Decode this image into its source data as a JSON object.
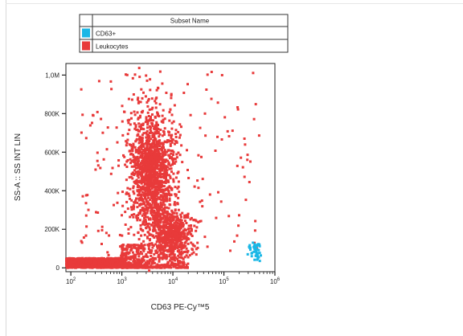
{
  "chart_data": {
    "type": "scatter",
    "xlabel": "CD63 PE-Cy™5",
    "ylabel": "SS-A :: SS INT LIN",
    "x_scale": "log",
    "xlim": [
      80,
      1000000
    ],
    "ylim": [
      -20000,
      1060000
    ],
    "x_ticks": [
      {
        "base": "10",
        "exp": "2",
        "value": 100
      },
      {
        "base": "10",
        "exp": "3",
        "value": 1000
      },
      {
        "base": "10",
        "exp": "4",
        "value": 10000
      },
      {
        "base": "10",
        "exp": "5",
        "value": 100000
      },
      {
        "base": "10",
        "exp": "6",
        "value": 1000000
      }
    ],
    "y_ticks": [
      {
        "label": "0",
        "value": 0
      },
      {
        "label": "200K",
        "value": 200000
      },
      {
        "label": "400K",
        "value": 400000
      },
      {
        "label": "600K",
        "value": 600000
      },
      {
        "label": "800K",
        "value": 800000
      },
      {
        "label": "1,0M",
        "value": 1000000
      }
    ],
    "legend": {
      "header": "Subset Name",
      "placement": "top",
      "entries": [
        {
          "name": "CD63+",
          "color": "#1ab7e6"
        },
        {
          "name": "Leukocytes",
          "color": "#e83a3a"
        }
      ]
    },
    "series": [
      {
        "name": "Leukocytes",
        "color": "#e83a3a",
        "clusters": [
          {
            "kind": "baseline",
            "x_range": [
              80,
              1000
            ],
            "y_range": [
              0,
              50000
            ],
            "n": 1100
          },
          {
            "kind": "baseline_tail",
            "x_range": [
              1000,
              20000
            ],
            "y_range": [
              0,
              120000
            ],
            "n": 500
          },
          {
            "kind": "main_population",
            "x_center": 4000,
            "x_spread_log10": 0.22,
            "y_center": 480000,
            "y_spread": 160000,
            "n": 1500
          },
          {
            "kind": "lower_population",
            "x_center": 10000,
            "x_spread_log10": 0.2,
            "y_center": 180000,
            "y_spread": 55000,
            "n": 500
          },
          {
            "kind": "scattered",
            "x_range": [
              150,
              500000
            ],
            "y_range": [
              50000,
              1020000
            ],
            "n": 220
          }
        ]
      },
      {
        "name": "CD63+",
        "color": "#1ab7e6",
        "clusters": [
          {
            "kind": "cd63_positive",
            "x_center": 400000,
            "x_spread_log10": 0.08,
            "y_center": 90000,
            "y_spread": 25000,
            "n": 45
          }
        ]
      }
    ]
  }
}
